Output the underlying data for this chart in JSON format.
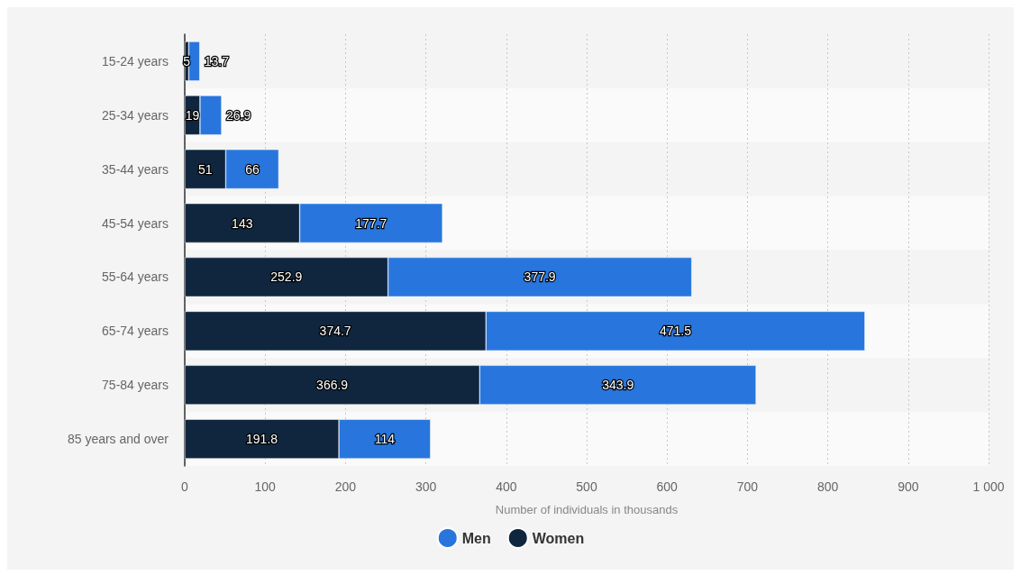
{
  "chart_data": {
    "type": "bar",
    "orientation": "horizontal",
    "stacked": true,
    "categories": [
      "15-24 years",
      "25-34 years",
      "35-44 years",
      "45-54 years",
      "55-64 years",
      "65-74 years",
      "75-84 years",
      "85 years and over"
    ],
    "series": [
      {
        "name": "Women",
        "color": "#10263f",
        "values": [
          5,
          19,
          51,
          143,
          252.9,
          374.7,
          366.9,
          191.8
        ]
      },
      {
        "name": "Men",
        "color": "#2876dd",
        "values": [
          13.7,
          26.9,
          66,
          177.7,
          377.9,
          471.5,
          343.9,
          114
        ]
      }
    ],
    "xlabel": "Number of individuals in thousands",
    "xlim": [
      0,
      1000
    ],
    "xticks": [
      0,
      100,
      200,
      300,
      400,
      500,
      600,
      700,
      800,
      900,
      {
        "value": 1000,
        "label": "1 000"
      }
    ],
    "grid": "x",
    "legend": "bottom",
    "data_labels": true
  }
}
